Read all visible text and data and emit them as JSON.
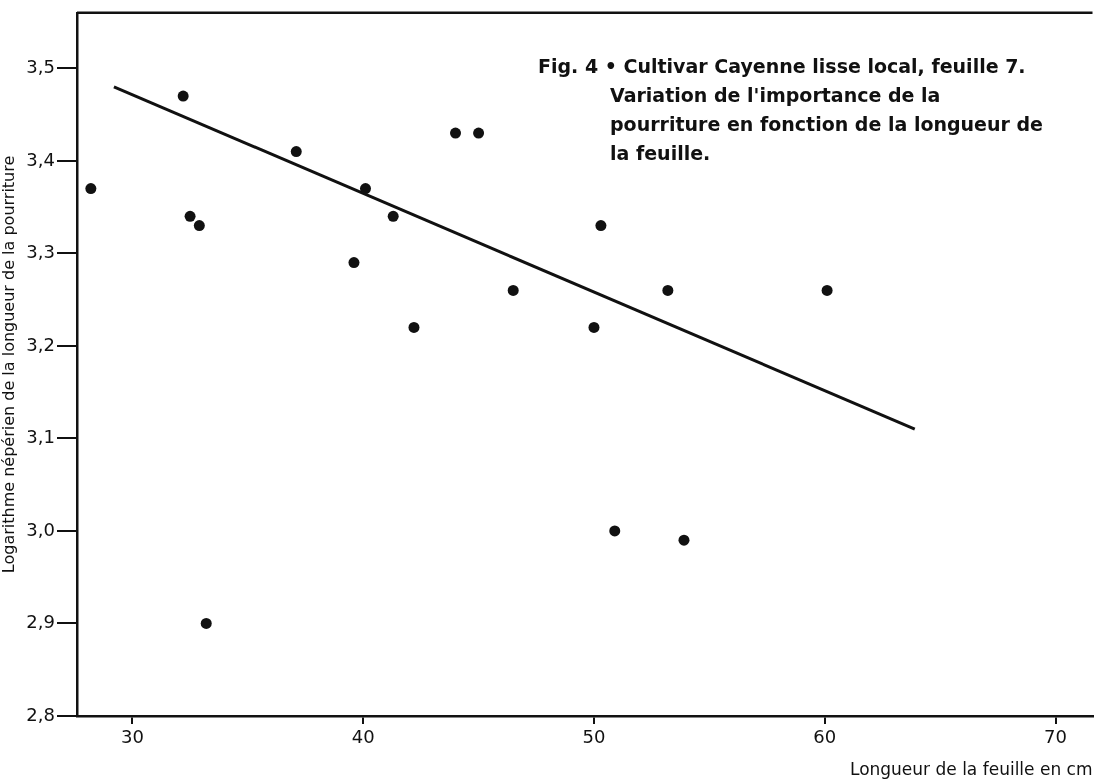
{
  "chart_data": {
    "type": "scatter",
    "title": "Fig. 4 • Cultivar Cayenne lisse local,   feuille 7.",
    "subtitle": "Variation de l'importance de la pourriture en fonction de la longueur de la feuille.",
    "xlabel": "Longueur de la feuille en cm",
    "ylabel": "Logarithme népérien de la longueur de la pourriture",
    "series": [
      {
        "color": "#111111",
        "marker": "circle",
        "x": [
          28.2,
          32.2,
          32.5,
          32.9,
          33.2,
          37.1,
          39.6,
          40.1,
          41.3,
          42.2,
          44.0,
          45.0,
          46.5,
          50.3,
          50.0,
          53.2,
          60.1,
          50.9,
          53.9
        ],
        "values": [
          3.37,
          3.47,
          3.34,
          3.33,
          2.9,
          3.41,
          3.29,
          3.37,
          3.34,
          3.22,
          3.43,
          3.43,
          3.26,
          3.33,
          3.22,
          3.26,
          3.26,
          3.0,
          2.99
        ]
      },
      {
        "type": "line",
        "color": "#111111",
        "marker": "none",
        "line_style": "solid",
        "x": [
          29.2,
          63.9
        ],
        "values": [
          3.48,
          3.11
        ]
      }
    ],
    "xlim": [
      27.6,
      71.6
    ],
    "xticks": [
      30,
      40,
      50,
      60,
      70
    ],
    "ylim": [
      2.8,
      3.56
    ],
    "yticks": [
      {
        "value": 2.8,
        "label": "2,8"
      },
      {
        "value": 2.9,
        "label": "2,9"
      },
      {
        "value": 3.0,
        "label": "3,0"
      },
      {
        "value": 3.1,
        "label": "3,1"
      },
      {
        "value": 3.2,
        "label": "3,2"
      },
      {
        "value": 3.3,
        "label": "3,3"
      },
      {
        "value": 3.4,
        "label": "3,4"
      },
      {
        "value": 3.5,
        "label": "3,5"
      }
    ],
    "grid": false,
    "legend": false
  }
}
